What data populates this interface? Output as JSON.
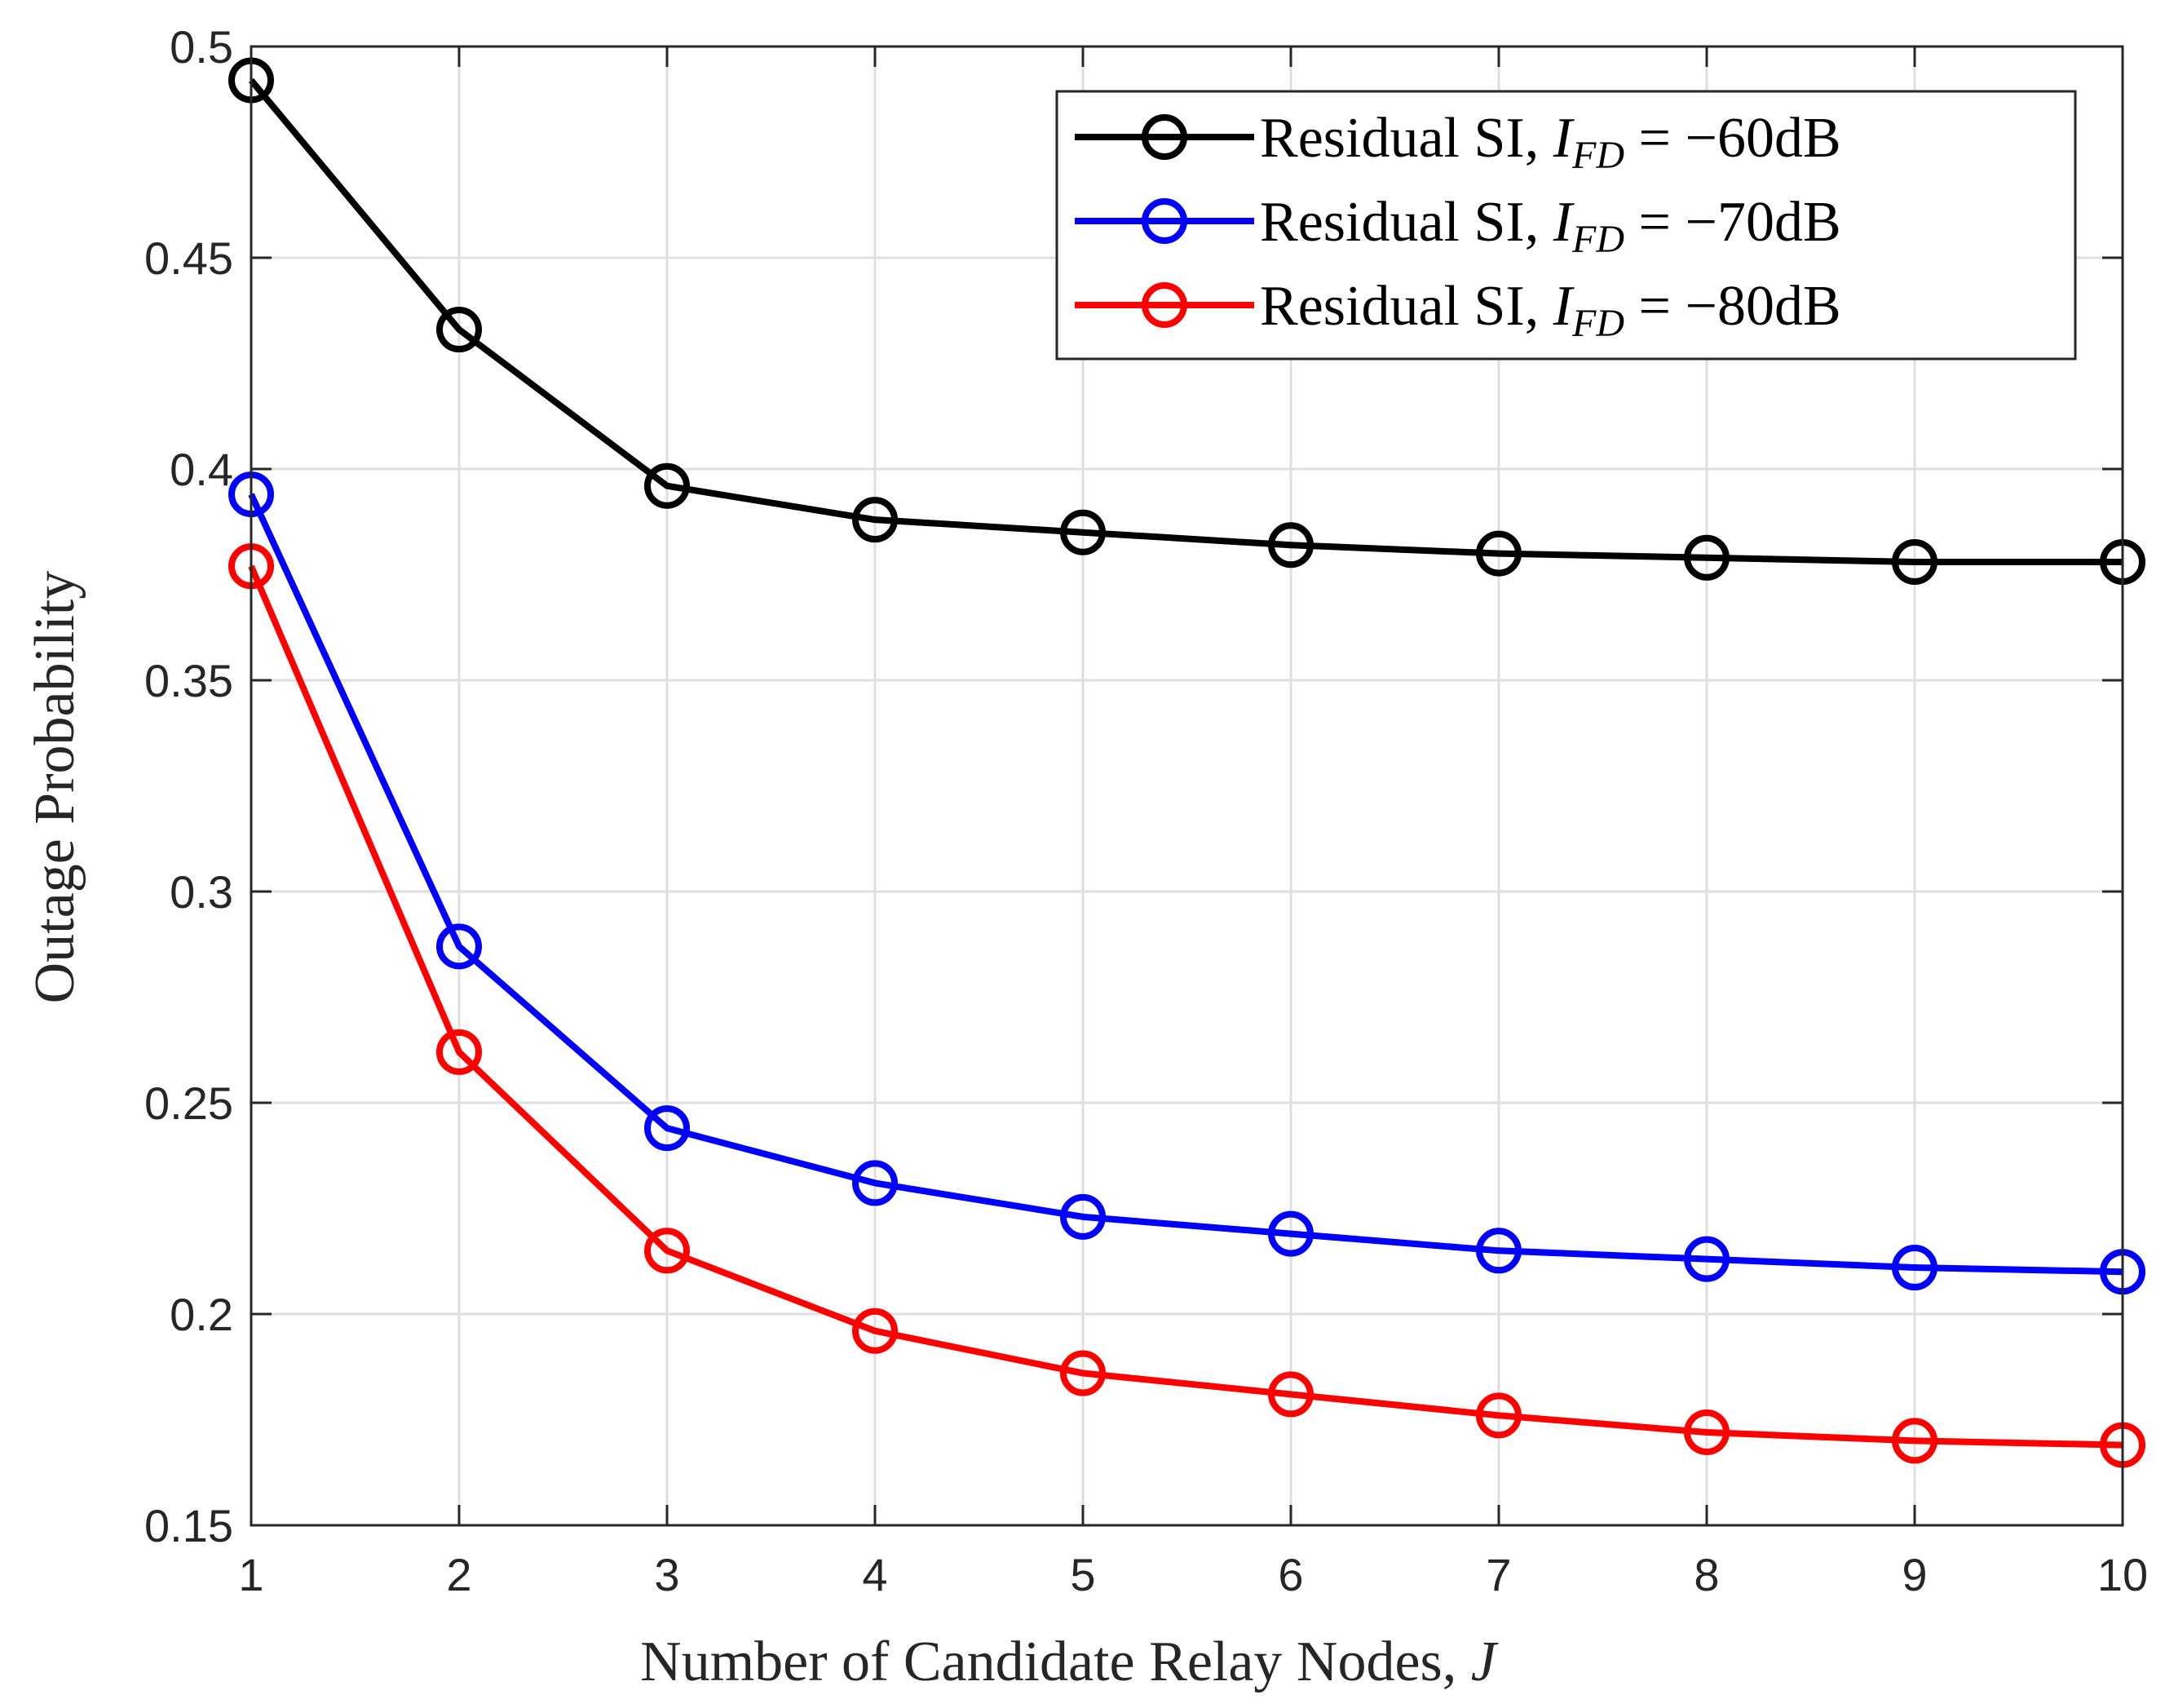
{
  "chart_data": {
    "type": "line",
    "title": "",
    "xlabel": "Number of Candidate Relay Nodes, ",
    "xlabel_var": "J",
    "ylabel": "Outage Probability",
    "x": [
      1,
      2,
      3,
      4,
      5,
      6,
      7,
      8,
      9,
      10
    ],
    "xlim": [
      1,
      10
    ],
    "ylim": [
      0.15,
      0.5
    ],
    "xticks": [
      "1",
      "2",
      "3",
      "4",
      "5",
      "6",
      "7",
      "8",
      "9",
      "10"
    ],
    "yticks": [
      "0.15",
      "0.2",
      "0.25",
      "0.3",
      "0.35",
      "0.4",
      "0.45",
      "0.5"
    ],
    "ytick_values": [
      0.15,
      0.2,
      0.25,
      0.3,
      0.35,
      0.4,
      0.45,
      0.5
    ],
    "grid": true,
    "legend_position": "top-right",
    "series": [
      {
        "name": "Residual SI, I_FD = −60dB",
        "legend_prefix": "Residual SI, ",
        "legend_var": "I",
        "legend_sub": "FD",
        "legend_suffix": " = −60dB",
        "color": "#000000",
        "marker": "circle",
        "values": [
          0.492,
          0.433,
          0.396,
          0.388,
          0.385,
          0.382,
          0.38,
          0.379,
          0.378,
          0.378
        ]
      },
      {
        "name": "Residual SI, I_FD = −70dB",
        "legend_prefix": "Residual SI, ",
        "legend_var": "I",
        "legend_sub": "FD",
        "legend_suffix": " = −70dB",
        "color": "#0000ff",
        "marker": "circle",
        "values": [
          0.394,
          0.287,
          0.244,
          0.231,
          0.223,
          0.219,
          0.215,
          0.213,
          0.211,
          0.21
        ]
      },
      {
        "name": "Residual SI, I_FD = −80dB",
        "legend_prefix": "Residual SI, ",
        "legend_var": "I",
        "legend_sub": "FD",
        "legend_suffix": " = −80dB",
        "color": "#ff0000",
        "marker": "circle",
        "values": [
          0.377,
          0.262,
          0.215,
          0.196,
          0.186,
          0.181,
          0.176,
          0.172,
          0.17,
          0.169
        ]
      }
    ]
  }
}
